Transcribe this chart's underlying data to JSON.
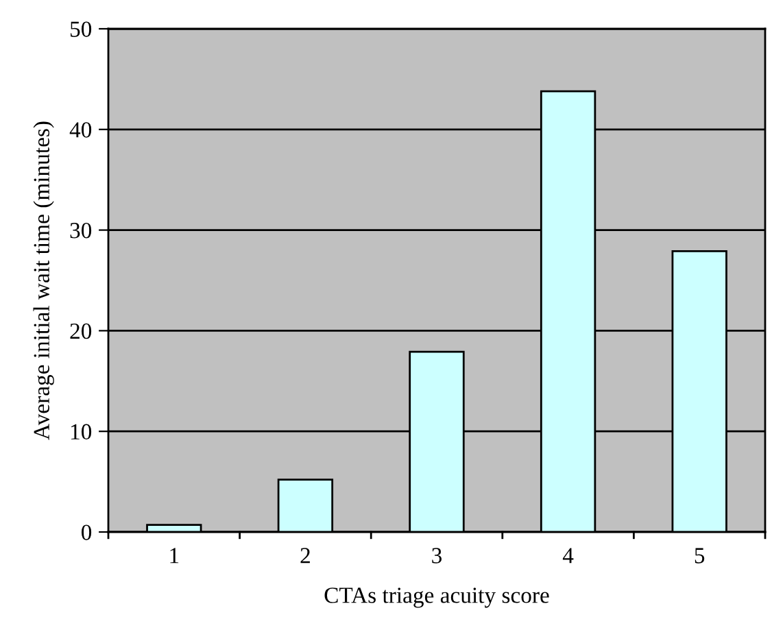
{
  "chart_data": {
    "type": "bar",
    "xlabel": "CTAs triage acuity score",
    "ylabel": "Average initial wait time (minutes)",
    "categories": [
      "1",
      "2",
      "3",
      "4",
      "5"
    ],
    "values": [
      0.7,
      5.2,
      17.9,
      43.8,
      27.9
    ],
    "color": "#ccffff",
    "ylim": [
      0,
      50
    ],
    "yticks": [
      0,
      10,
      20,
      30,
      40,
      50
    ],
    "grid": "y"
  }
}
